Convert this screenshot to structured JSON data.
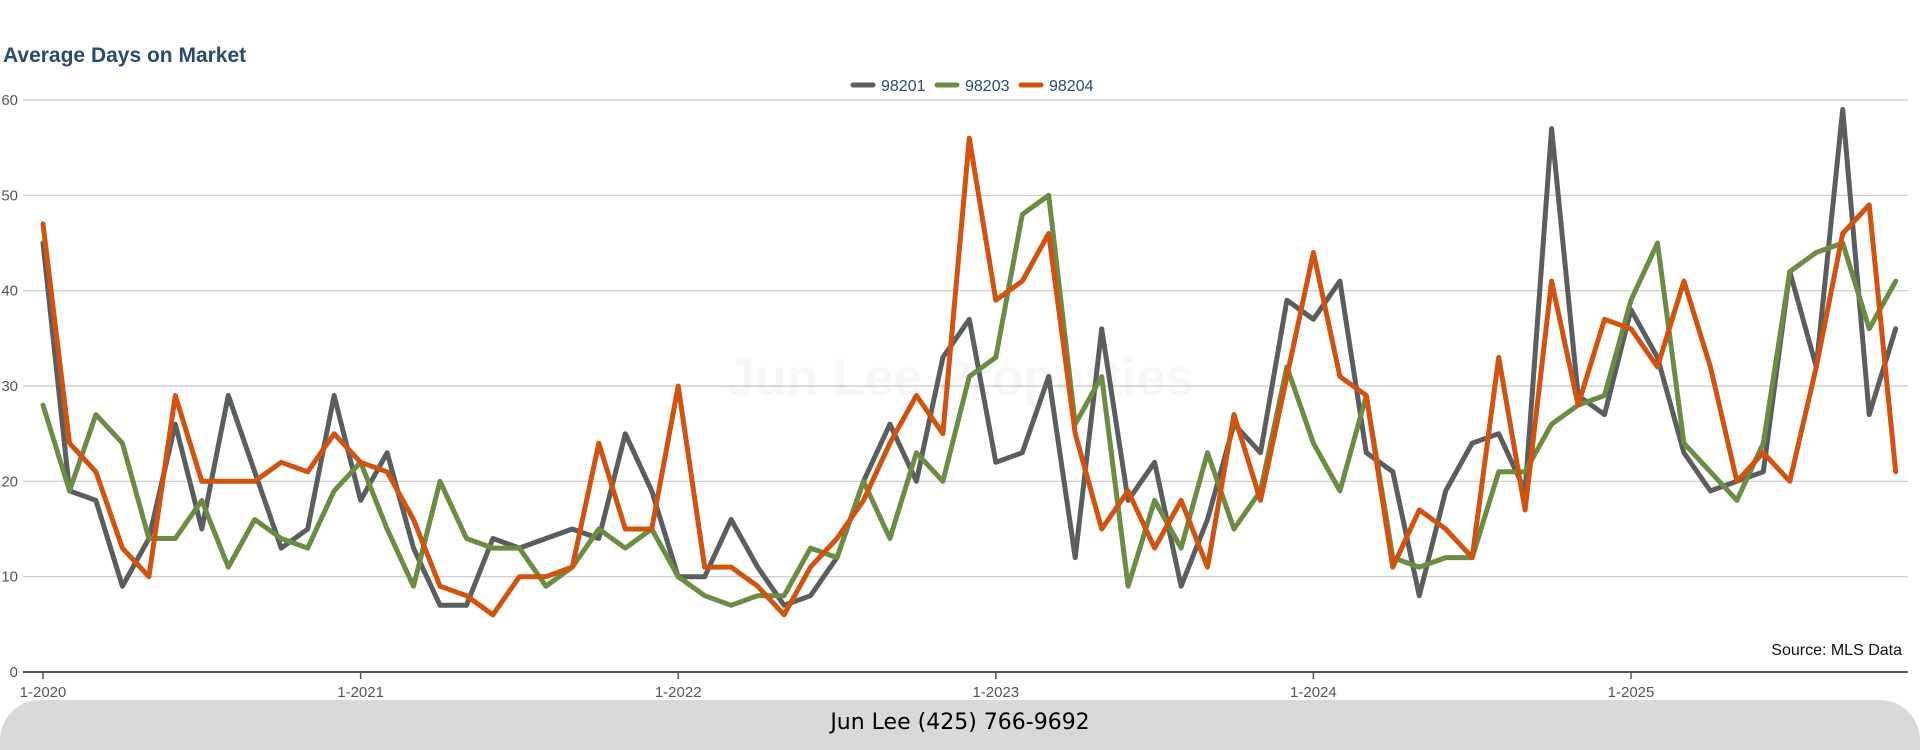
{
  "footer": {
    "contact": "Jun Lee (425) 766-9692"
  },
  "source_note": "Source: MLS Data",
  "watermark": "Jun Lee Properties",
  "chart_data": {
    "type": "line",
    "title": "Average Days on Market",
    "xlabel": "",
    "ylabel": "",
    "ylim": [
      0,
      60
    ],
    "yticks": [
      0,
      10,
      20,
      30,
      40,
      50,
      60
    ],
    "xticks": [
      "1-2020",
      "1-2021",
      "1-2022",
      "1-2023",
      "1-2024",
      "1-2025"
    ],
    "grid": true,
    "legend_position": "top-center",
    "x_start": "1-2020",
    "x_unit": "month",
    "x_count": 72,
    "series": [
      {
        "name": "98201",
        "color": "#5a5e5e",
        "values": [
          45,
          19,
          18,
          9,
          14,
          26,
          15,
          29,
          21,
          13,
          15,
          29,
          18,
          23,
          13,
          7,
          7,
          14,
          13,
          14,
          15,
          14,
          25,
          19,
          10,
          10,
          16,
          11,
          7,
          8,
          12,
          20,
          26,
          20,
          33,
          37,
          22,
          23,
          31,
          12,
          36,
          18,
          22,
          9,
          16,
          26,
          23,
          39,
          37,
          41,
          23,
          21,
          8,
          19,
          24,
          25,
          19,
          57,
          29,
          27,
          38,
          33,
          23,
          19,
          20,
          21,
          42,
          32,
          59,
          27,
          36,
          null
        ]
      },
      {
        "name": "98203",
        "color": "#6b8c42",
        "values": [
          28,
          19,
          27,
          24,
          14,
          14,
          18,
          11,
          16,
          14,
          13,
          19,
          22,
          15,
          9,
          20,
          14,
          13,
          13,
          9,
          11,
          15,
          13,
          15,
          10,
          8,
          7,
          8,
          8,
          13,
          12,
          20,
          14,
          23,
          20,
          31,
          33,
          48,
          50,
          26,
          31,
          9,
          18,
          13,
          23,
          15,
          19,
          32,
          24,
          19,
          29,
          12,
          11,
          12,
          12,
          21,
          21,
          26,
          28,
          29,
          39,
          45,
          24,
          21,
          18,
          24,
          42,
          44,
          45,
          36,
          41,
          null
        ]
      },
      {
        "name": "98204",
        "color": "#d2520f",
        "values": [
          47,
          24,
          21,
          13,
          10,
          29,
          20,
          20,
          20,
          22,
          21,
          25,
          22,
          21,
          16,
          9,
          8,
          6,
          10,
          10,
          11,
          24,
          15,
          15,
          30,
          11,
          11,
          9,
          6,
          11,
          14,
          18,
          24,
          29,
          25,
          56,
          39,
          41,
          46,
          25,
          15,
          19,
          13,
          18,
          11,
          27,
          18,
          31,
          44,
          31,
          29,
          11,
          17,
          15,
          12,
          33,
          17,
          41,
          28,
          37,
          36,
          32,
          41,
          32,
          20,
          23,
          20,
          32,
          46,
          49,
          21,
          null
        ]
      }
    ]
  }
}
